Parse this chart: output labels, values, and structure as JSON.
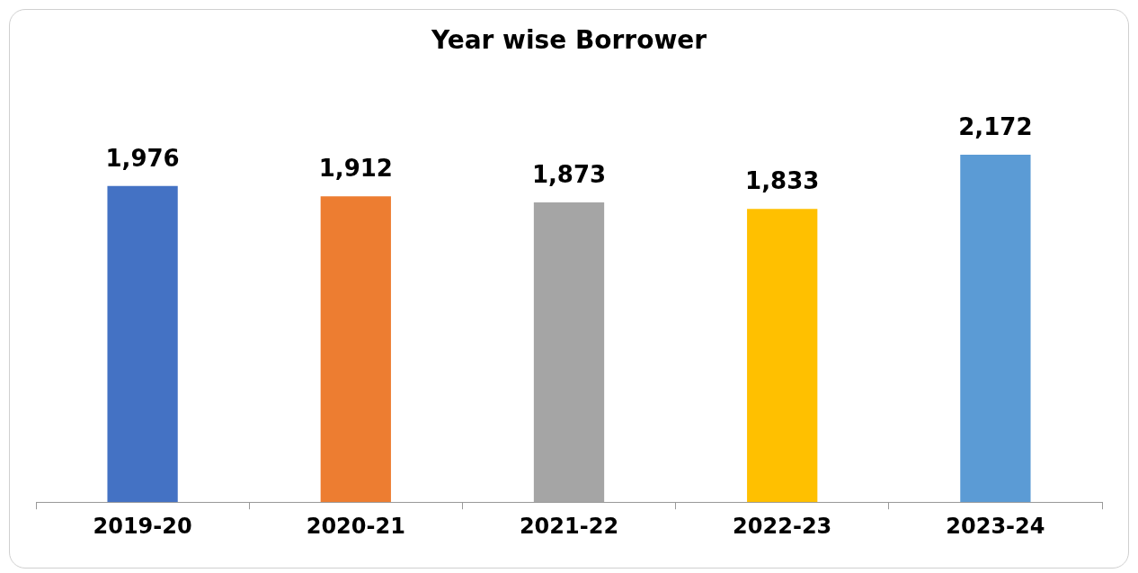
{
  "chart_data": {
    "type": "bar",
    "title": "Year wise Borrower",
    "categories": [
      "2019-20",
      "2020-21",
      "2021-22",
      "2022-23",
      "2023-24"
    ],
    "values": [
      1976,
      1912,
      1873,
      1833,
      2172
    ],
    "colors": [
      "#4472c4",
      "#ed7d31",
      "#a5a5a5",
      "#ffc000",
      "#5b9bd5"
    ],
    "value_labels": [
      "1,976",
      "1,912",
      "1,873",
      "1,833",
      "2,172"
    ],
    "tick_labels": "x",
    "grid": false,
    "legend": false
  }
}
